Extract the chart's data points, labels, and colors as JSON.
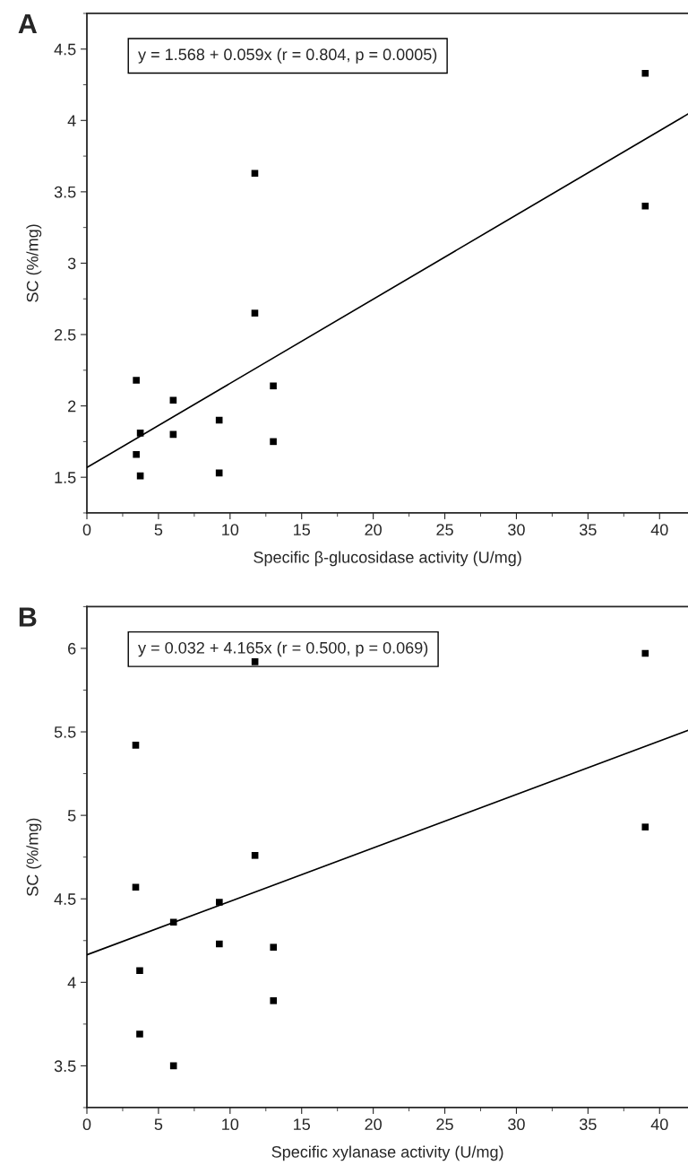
{
  "chart_data": [
    {
      "type": "scatter",
      "title": "A",
      "xlabel": "Specific β-glucosidase activity (U/mg)",
      "ylabel": "SC (%/mg)",
      "annotations": [
        "y = 1.568 + 0.059x (r = 0.804, p = 0.0005)"
      ],
      "xlim": [
        0,
        42
      ],
      "ylim": [
        1.25,
        4.75
      ],
      "xticks": [
        0,
        5,
        10,
        15,
        20,
        25,
        30,
        35,
        40
      ],
      "yticks": [
        1.5,
        2,
        2.5,
        3,
        3.5,
        4,
        4.5
      ],
      "grid": false,
      "legend": false,
      "series": [
        {
          "color": "#000000",
          "marker": "square",
          "x": [
            3.45,
            3.45,
            3.73,
            3.73,
            6.03,
            6.03,
            9.24,
            9.24,
            11.73,
            11.73,
            13.02,
            13.02,
            39.0,
            39.0
          ],
          "values": [
            2.18,
            1.66,
            1.81,
            1.51,
            2.04,
            1.8,
            1.9,
            1.53,
            3.63,
            2.65,
            2.14,
            1.75,
            4.33,
            3.4
          ]
        },
        {
          "type": "line",
          "color": "#000000",
          "line_style": "solid",
          "x": [
            0,
            42
          ],
          "values": [
            1.568,
            4.046
          ]
        }
      ]
    },
    {
      "type": "scatter",
      "title": "B",
      "xlabel": "Specific xylanase activity (U/mg)",
      "ylabel": "SC (%/mg)",
      "annotations": [
        "y = 0.032 + 4.165x (r = 0.500, p = 0.069)"
      ],
      "xlim": [
        0,
        42
      ],
      "ylim": [
        3.25,
        6.25
      ],
      "xticks": [
        0,
        5,
        10,
        15,
        20,
        25,
        30,
        35,
        40
      ],
      "yticks": [
        3.5,
        4,
        4.5,
        5,
        5.5,
        6
      ],
      "grid": false,
      "legend": false,
      "series": [
        {
          "color": "#000000",
          "marker": "square",
          "x": [
            3.41,
            3.41,
            3.69,
            3.69,
            6.05,
            6.05,
            9.25,
            9.25,
            11.74,
            11.74,
            13.03,
            13.03,
            39.0,
            39.0
          ],
          "values": [
            5.42,
            4.57,
            4.07,
            3.69,
            4.36,
            3.5,
            4.48,
            4.23,
            4.76,
            5.92,
            4.21,
            3.89,
            5.97,
            4.93
          ]
        },
        {
          "type": "line",
          "color": "#000000",
          "line_style": "solid",
          "x": [
            0,
            42
          ],
          "values": [
            4.165,
            5.509
          ]
        }
      ]
    }
  ]
}
